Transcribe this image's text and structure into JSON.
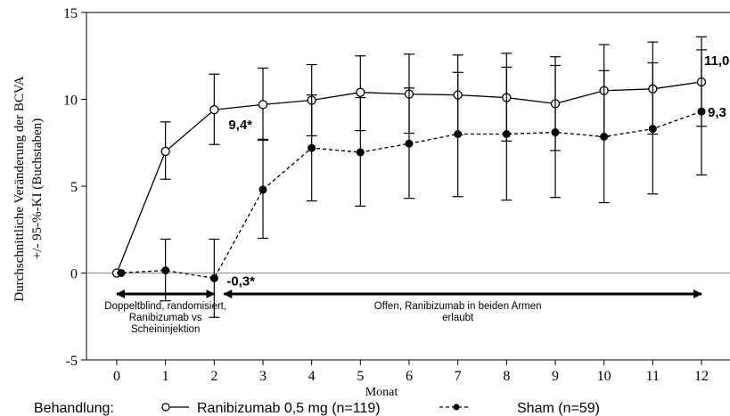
{
  "chart_data": {
    "type": "line",
    "title": "",
    "xlabel": "Monat",
    "ylabel_line1": "Durchschnittliche Veränderung der  BCVA",
    "ylabel_line2": "+/- 95-%-KI  (Buchstaben)",
    "xlim": [
      0,
      12
    ],
    "ylim": [
      -5,
      15
    ],
    "x_ticks": [
      "0",
      "1",
      "2",
      "3",
      "4",
      "5",
      "6",
      "7",
      "8",
      "9",
      "10",
      "11",
      "12"
    ],
    "y_ticks": [
      "-5",
      "0",
      "5",
      "10",
      "15"
    ],
    "grid": false,
    "reference_line_y": 0,
    "series": [
      {
        "name": "Ranibizumab 0,5 mg (n=119)",
        "color": "#000000",
        "line_style": "solid",
        "marker": "open-circle",
        "x": [
          0,
          1,
          2,
          3,
          4,
          5,
          6,
          7,
          8,
          9,
          10,
          11,
          12
        ],
        "values": [
          0,
          7.0,
          9.4,
          9.7,
          9.95,
          10.4,
          10.3,
          10.25,
          10.1,
          9.75,
          10.5,
          10.6,
          11.0
        ],
        "ci_lower": [
          0,
          5.4,
          7.4,
          7.7,
          7.9,
          8.2,
          8.05,
          7.95,
          7.6,
          7.05,
          7.85,
          8.0,
          8.45
        ],
        "ci_upper": [
          0,
          8.7,
          11.45,
          11.8,
          12.0,
          12.5,
          12.6,
          12.55,
          12.65,
          12.45,
          13.15,
          13.3,
          13.6
        ]
      },
      {
        "name": "Sham (n=59)",
        "color": "#000000",
        "line_style": "dashed",
        "marker": "filled-circle",
        "x": [
          0,
          1,
          2,
          3,
          4,
          5,
          6,
          7,
          8,
          9,
          10,
          11,
          12
        ],
        "values": [
          0,
          0.15,
          -0.3,
          4.8,
          7.2,
          6.95,
          7.45,
          8.0,
          8.0,
          8.1,
          7.85,
          8.3,
          9.3
        ],
        "ci_lower": [
          0,
          -1.6,
          -2.55,
          2.0,
          4.15,
          3.85,
          4.3,
          4.4,
          4.2,
          4.35,
          4.05,
          4.55,
          5.65
        ],
        "ci_upper": [
          0,
          1.95,
          1.95,
          7.65,
          10.25,
          10.1,
          10.65,
          11.55,
          11.85,
          11.95,
          11.65,
          12.1,
          12.85
        ]
      }
    ],
    "annotations": [
      {
        "text": "9,4*",
        "x": 2,
        "y": 9.4
      },
      {
        "text": "-0,3*",
        "x": 2,
        "y": -0.3
      },
      {
        "text": "11,0",
        "x": 12,
        "y": 11.0
      },
      {
        "text": "9,3",
        "x": 12,
        "y": 9.3
      }
    ],
    "phases": [
      {
        "lines": [
          "Doppeltblind, randomisiert,",
          "Ranibizumab vs",
          "Scheininjektion"
        ],
        "x_start": 0,
        "x_end": 2
      },
      {
        "lines": [
          "Offen, Ranibizumab in beiden Armen",
          "erlaubt"
        ],
        "x_start": 2.2,
        "x_end": 12
      }
    ],
    "legend": {
      "position": "bottom",
      "title": "Behandlung:",
      "entries": [
        "Ranibizumab 0,5 mg (n=119)",
        "Sham (n=59)"
      ]
    }
  }
}
